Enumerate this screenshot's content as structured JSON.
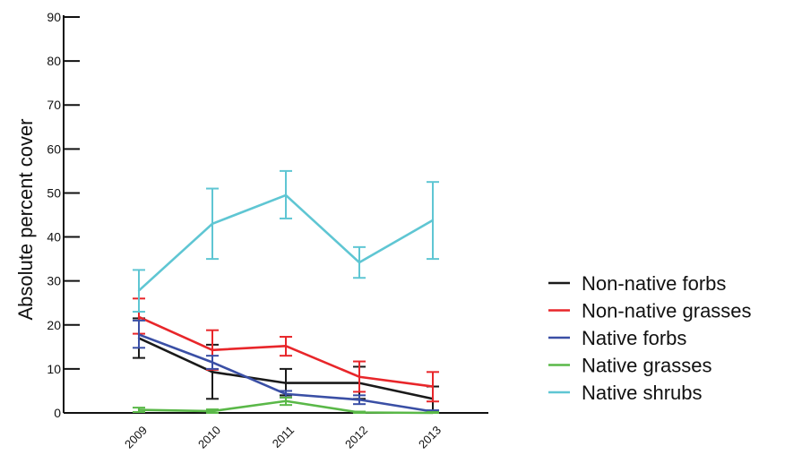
{
  "chart_data": {
    "type": "line",
    "title": "",
    "xlabel": "",
    "ylabel": "Absolute percent cover",
    "categories": [
      "2009",
      "2010",
      "2011",
      "2012",
      "2013"
    ],
    "ylim": [
      0,
      90
    ],
    "yticks": [
      "0",
      "10",
      "20",
      "30",
      "40",
      "50",
      "60",
      "70",
      "80",
      "90"
    ],
    "grid": false,
    "legend_position": "right",
    "series": [
      {
        "name": "Non-native forbs",
        "color": "#1a1a1a",
        "values": [
          17,
          9.3,
          6.8,
          6.8,
          3.2
        ],
        "err_low": [
          12.5,
          3.2,
          4.0,
          3.2,
          0.5
        ],
        "err_high": [
          21.5,
          15.5,
          10.0,
          10.5,
          6.0
        ]
      },
      {
        "name": "Non-native grasses",
        "color": "#e8262a",
        "values": [
          21.8,
          14.3,
          15.2,
          8.2,
          6.0
        ],
        "err_low": [
          18.0,
          9.8,
          13.0,
          4.8,
          2.6
        ],
        "err_high": [
          26.0,
          18.8,
          17.3,
          11.7,
          9.3
        ]
      },
      {
        "name": "Native forbs",
        "color": "#3a4fa5",
        "values": [
          17.8,
          11.5,
          4.3,
          3.0,
          0.3
        ],
        "err_low": [
          14.8,
          10.0,
          3.5,
          2.0,
          0.0
        ],
        "err_high": [
          21.0,
          13.0,
          5.0,
          4.0,
          0.6
        ]
      },
      {
        "name": "Native grasses",
        "color": "#5ab848",
        "values": [
          0.7,
          0.4,
          2.7,
          0.1,
          0.0
        ],
        "err_low": [
          0.2,
          0.0,
          1.8,
          0.0,
          0.0
        ],
        "err_high": [
          1.2,
          0.8,
          3.5,
          0.3,
          0.2
        ]
      },
      {
        "name": "Native shrubs",
        "color": "#5fc6d3",
        "values": [
          27.8,
          43.0,
          49.5,
          34.2,
          43.8
        ],
        "err_low": [
          23.0,
          35.0,
          44.2,
          30.7,
          35.0
        ],
        "err_high": [
          32.5,
          51.0,
          55.0,
          37.7,
          52.5
        ]
      }
    ]
  }
}
